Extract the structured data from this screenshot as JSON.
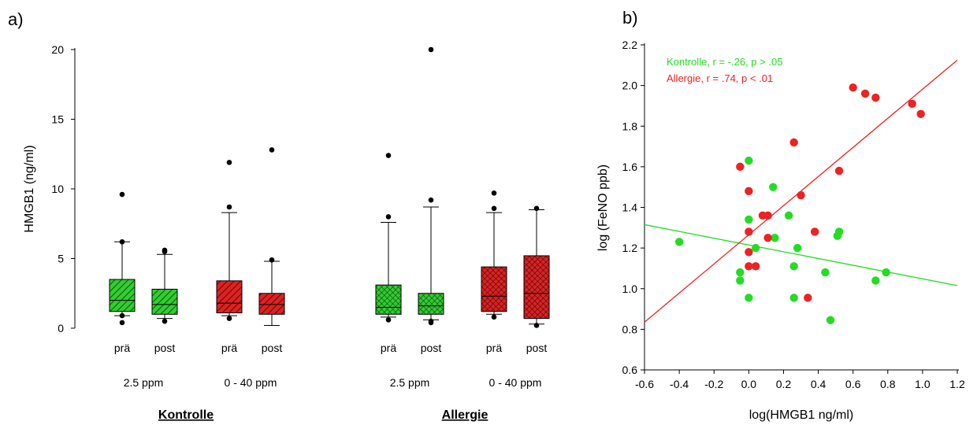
{
  "panel_a": {
    "label": "a)",
    "ylabel": "HMGB1  (ng/ml)",
    "yticks": [
      "0",
      "5",
      "10",
      "15",
      "20"
    ],
    "group_labels": [
      "Kontrolle",
      "Allergie"
    ]
  },
  "panel_b": {
    "label": "b)",
    "xlabel": "log(HMGB1 ng/ml)",
    "ylabel": "log (FeNO ppb)",
    "xticks": [
      "-0.6",
      "-0.4",
      "-0.2",
      "0.0",
      "0.2",
      "0.4",
      "0.6",
      "0.8",
      "1.0",
      "1.2"
    ],
    "yticks": [
      "0.6",
      "0.8",
      "1.0",
      "1.2",
      "1.4",
      "1.6",
      "1.8",
      "2.0",
      "2.2"
    ],
    "legend": [
      "Kontrolle,  r =  -.26, p > .05",
      "Allergie,     r =   .74, p < .01"
    ]
  },
  "colors": {
    "green": "#22dd22",
    "red": "#ee2222",
    "box_green": "#33cc33",
    "box_red": "#dd2222"
  },
  "chart_data": [
    {
      "type": "box",
      "title": "",
      "ylabel": "HMGB1  (ng/ml)",
      "ylim": [
        0,
        20
      ],
      "boxes": [
        {
          "label": "prä",
          "dose": "2.5 ppm",
          "group": "Kontrolle",
          "color": "green",
          "pattern": "hatch",
          "whisker_low": 0.9,
          "q1": 1.2,
          "median": 2.0,
          "q3": 3.5,
          "whisker_high": 6.2,
          "outliers": [
            0.4,
            0.9,
            6.2,
            9.6
          ]
        },
        {
          "label": "post",
          "dose": "2.5 ppm",
          "group": "Kontrolle",
          "color": "green",
          "pattern": "hatch",
          "whisker_low": 0.7,
          "q1": 1.0,
          "median": 1.7,
          "q3": 2.8,
          "whisker_high": 5.3,
          "outliers": [
            0.5,
            5.5,
            5.6
          ]
        },
        {
          "label": "prä",
          "dose": "0 - 40 ppm",
          "group": "Kontrolle",
          "color": "red",
          "pattern": "hatch",
          "whisker_low": 0.9,
          "q1": 1.1,
          "median": 1.8,
          "q3": 3.4,
          "whisker_high": 8.3,
          "outliers": [
            0.7,
            8.7,
            11.9
          ]
        },
        {
          "label": "post",
          "dose": "0 - 40 ppm",
          "group": "Kontrolle",
          "color": "red",
          "pattern": "hatch",
          "whisker_low": 0.2,
          "q1": 1.0,
          "median": 1.7,
          "q3": 2.5,
          "whisker_high": 4.8,
          "outliers": [
            4.9,
            12.8
          ]
        },
        {
          "label": "prä",
          "dose": "2.5 ppm",
          "group": "Allergie",
          "color": "green",
          "pattern": "cross",
          "whisker_low": 0.8,
          "q1": 1.0,
          "median": 1.5,
          "q3": 3.1,
          "whisker_high": 7.6,
          "outliers": [
            0.6,
            8.0,
            12.4
          ]
        },
        {
          "label": "post",
          "dose": "2.5 ppm",
          "group": "Allergie",
          "color": "green",
          "pattern": "cross",
          "whisker_low": 0.6,
          "q1": 1.0,
          "median": 1.6,
          "q3": 2.5,
          "whisker_high": 8.7,
          "outliers": [
            0.4,
            0.5,
            9.2,
            20.0
          ]
        },
        {
          "label": "prä",
          "dose": "0 - 40 ppm",
          "group": "Allergie",
          "color": "red",
          "pattern": "cross",
          "whisker_low": 1.0,
          "q1": 1.2,
          "median": 2.3,
          "q3": 4.4,
          "whisker_high": 8.3,
          "outliers": [
            0.8,
            8.6,
            9.7
          ]
        },
        {
          "label": "post",
          "dose": "0 - 40 ppm",
          "group": "Allergie",
          "color": "red",
          "pattern": "cross",
          "whisker_low": 0.3,
          "q1": 0.7,
          "median": 2.5,
          "q3": 5.2,
          "whisker_high": 8.5,
          "outliers": [
            0.2,
            8.6
          ]
        }
      ]
    },
    {
      "type": "scatter",
      "title": "",
      "xlabel": "log(HMGB1 ng/ml)",
      "ylabel": "log (FeNO ppb)",
      "xlim": [
        -0.6,
        1.2
      ],
      "ylim": [
        0.6,
        2.2
      ],
      "series": [
        {
          "name": "Kontrolle",
          "color": "green",
          "points": [
            [
              -0.4,
              1.23
            ],
            [
              -0.05,
              1.08
            ],
            [
              -0.05,
              1.04
            ],
            [
              0.0,
              1.63
            ],
            [
              0.0,
              1.34
            ],
            [
              0.0,
              0.955
            ],
            [
              0.04,
              1.2
            ],
            [
              0.14,
              1.5
            ],
            [
              0.15,
              1.25
            ],
            [
              0.23,
              1.36
            ],
            [
              0.26,
              0.955
            ],
            [
              0.26,
              1.11
            ],
            [
              0.28,
              1.2
            ],
            [
              0.44,
              1.08
            ],
            [
              0.47,
              0.845
            ],
            [
              0.51,
              1.26
            ],
            [
              0.52,
              1.28
            ],
            [
              0.73,
              1.04
            ],
            [
              0.79,
              1.08
            ]
          ],
          "fit": {
            "x": [
              -0.6,
              1.2
            ],
            "y": [
              1.315,
              1.015
            ]
          }
        },
        {
          "name": "Allergie",
          "color": "red",
          "points": [
            [
              -0.05,
              1.6
            ],
            [
              0.0,
              1.48
            ],
            [
              0.0,
              1.28
            ],
            [
              0.0,
              1.18
            ],
            [
              0.0,
              1.11
            ],
            [
              0.04,
              1.11
            ],
            [
              0.08,
              1.36
            ],
            [
              0.11,
              1.36
            ],
            [
              0.11,
              1.25
            ],
            [
              0.26,
              1.72
            ],
            [
              0.3,
              1.46
            ],
            [
              0.34,
              0.955
            ],
            [
              0.38,
              1.28
            ],
            [
              0.52,
              1.58
            ],
            [
              0.6,
              1.99
            ],
            [
              0.67,
              1.96
            ],
            [
              0.73,
              1.94
            ],
            [
              0.94,
              1.91
            ],
            [
              0.99,
              1.86
            ]
          ],
          "fit": {
            "x": [
              -0.6,
              1.2
            ],
            "y": [
              0.835,
              2.125
            ]
          }
        }
      ]
    }
  ]
}
